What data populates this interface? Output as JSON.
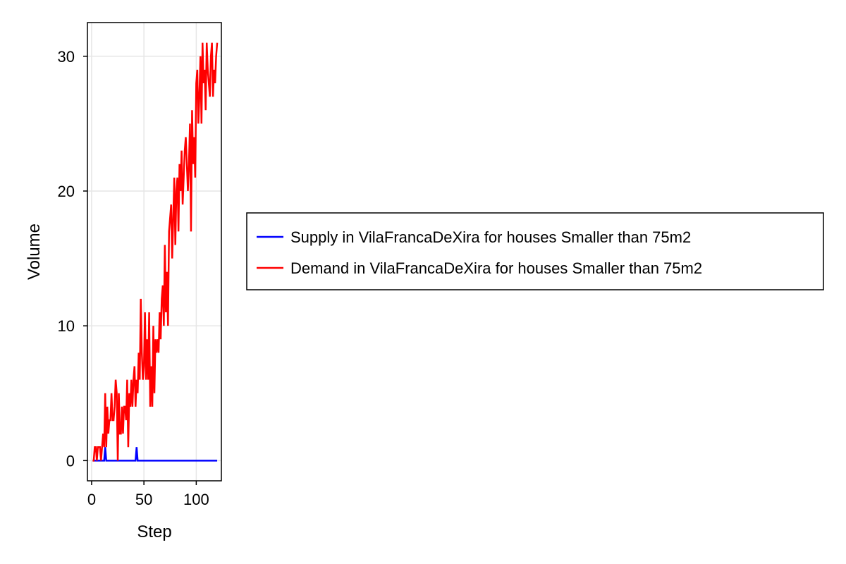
{
  "chart_data": {
    "type": "line",
    "title": "",
    "xlabel": "Step",
    "ylabel": "Volume",
    "xlim": [
      -4,
      124
    ],
    "ylim": [
      -1.5,
      32.5
    ],
    "xticks": [
      0,
      50,
      100
    ],
    "yticks": [
      0,
      10,
      20,
      30
    ],
    "grid": true,
    "legend_position": "right",
    "series": [
      {
        "name": "Supply in VilaFrancaDeXira for houses Smaller than 75m2",
        "color": "#0000ff",
        "x": [
          1,
          2,
          3,
          4,
          5,
          6,
          7,
          8,
          9,
          10,
          11,
          12,
          13,
          14,
          15,
          16,
          17,
          18,
          19,
          20,
          21,
          22,
          23,
          24,
          25,
          26,
          27,
          28,
          29,
          30,
          31,
          32,
          33,
          34,
          35,
          36,
          37,
          38,
          39,
          40,
          41,
          42,
          43,
          44,
          45,
          46,
          47,
          48,
          49,
          50,
          51,
          52,
          53,
          54,
          55,
          56,
          57,
          58,
          59,
          60,
          61,
          62,
          63,
          64,
          65,
          66,
          67,
          68,
          69,
          70,
          71,
          72,
          73,
          74,
          75,
          76,
          77,
          78,
          79,
          80,
          81,
          82,
          83,
          84,
          85,
          86,
          87,
          88,
          89,
          90,
          91,
          92,
          93,
          94,
          95,
          96,
          97,
          98,
          99,
          100,
          101,
          102,
          103,
          104,
          105,
          106,
          107,
          108,
          109,
          110,
          111,
          112,
          113,
          114,
          115,
          116,
          117,
          118,
          119,
          120
        ],
        "y": [
          0,
          0,
          0,
          0,
          0,
          0,
          0,
          0,
          0,
          0,
          0,
          0,
          1,
          0,
          0,
          0,
          0,
          0,
          0,
          0,
          0,
          0,
          0,
          0,
          0,
          0,
          0,
          0,
          0,
          0,
          0,
          0,
          0,
          0,
          0,
          0,
          0,
          0,
          0,
          0,
          0,
          0,
          1,
          0,
          0,
          0,
          0,
          0,
          0,
          0,
          0,
          0,
          0,
          0,
          0,
          0,
          0,
          0,
          0,
          0,
          0,
          0,
          0,
          0,
          0,
          0,
          0,
          0,
          0,
          0,
          0,
          0,
          0,
          0,
          0,
          0,
          0,
          0,
          0,
          0,
          0,
          0,
          0,
          0,
          0,
          0,
          0,
          0,
          0,
          0,
          0,
          0,
          0,
          0,
          0,
          0,
          0,
          0,
          0,
          0,
          0,
          0,
          0,
          0,
          0,
          0,
          0,
          0,
          0,
          0,
          0,
          0,
          0,
          0,
          0,
          0,
          0,
          0,
          0,
          0
        ]
      },
      {
        "name": "Demand in VilaFrancaDeXira for houses Smaller than 75m2",
        "color": "#ff0000",
        "x": [
          1,
          2,
          3,
          4,
          5,
          6,
          7,
          8,
          9,
          10,
          11,
          12,
          13,
          14,
          15,
          16,
          17,
          18,
          19,
          20,
          21,
          22,
          23,
          24,
          25,
          26,
          27,
          28,
          29,
          30,
          31,
          32,
          33,
          34,
          35,
          36,
          37,
          38,
          39,
          40,
          41,
          42,
          43,
          44,
          45,
          46,
          47,
          48,
          49,
          50,
          51,
          52,
          53,
          54,
          55,
          56,
          57,
          58,
          59,
          60,
          61,
          62,
          63,
          64,
          65,
          66,
          67,
          68,
          69,
          70,
          71,
          72,
          73,
          74,
          75,
          76,
          77,
          78,
          79,
          80,
          81,
          82,
          83,
          84,
          85,
          86,
          87,
          88,
          89,
          90,
          91,
          92,
          93,
          94,
          95,
          96,
          97,
          98,
          99,
          100,
          101,
          102,
          103,
          104,
          105,
          106,
          107,
          108,
          109,
          110,
          111,
          112,
          113,
          114,
          115,
          116,
          117,
          118,
          119,
          120
        ],
        "y": [
          0,
          0,
          1,
          1,
          0,
          1,
          1,
          1,
          0,
          1,
          2,
          1,
          5,
          1,
          4,
          2,
          3,
          3,
          5,
          3,
          3,
          4,
          6,
          5,
          0,
          5,
          2,
          2,
          4,
          2,
          4,
          4,
          3,
          6,
          1,
          5,
          4,
          6,
          4,
          6,
          7,
          4,
          6,
          5,
          8,
          6,
          12,
          8,
          6,
          7,
          11,
          6,
          9,
          6,
          11,
          4,
          7,
          4,
          10,
          5,
          9,
          8,
          9,
          8,
          11,
          9,
          12,
          13,
          10,
          16,
          11,
          14,
          10,
          17,
          18,
          19,
          15,
          18,
          21,
          16,
          20,
          21,
          17,
          22,
          20,
          23,
          19,
          21,
          23,
          24,
          22,
          20,
          22,
          25,
          17,
          26,
          22,
          24,
          21,
          28,
          29,
          25,
          27,
          30,
          25,
          31,
          28,
          29,
          26,
          31,
          29,
          28,
          27,
          30,
          31,
          27,
          29,
          28,
          30,
          31
        ]
      }
    ]
  }
}
